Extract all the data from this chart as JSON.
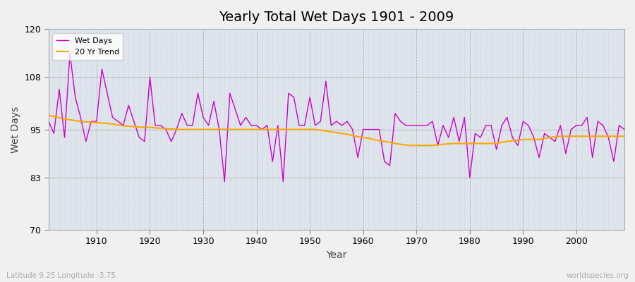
{
  "title": "Yearly Total Wet Days 1901 - 2009",
  "xlabel": "Year",
  "ylabel": "Wet Days",
  "subtitle_left": "Latitude 9.25 Longitude -3.75",
  "subtitle_right": "worldspecies.org",
  "bg_color": "#f0f0f0",
  "plot_bg_color": "#dde4ec",
  "wet_days_color": "#cc00cc",
  "trend_color": "#ffa500",
  "ylim": [
    70,
    120
  ],
  "yticks": [
    70,
    83,
    95,
    108,
    120
  ],
  "xlim": [
    1901,
    2009
  ],
  "xticks": [
    1910,
    1920,
    1930,
    1940,
    1950,
    1960,
    1970,
    1980,
    1990,
    2000
  ],
  "years": [
    1901,
    1902,
    1903,
    1904,
    1905,
    1906,
    1907,
    1908,
    1909,
    1910,
    1911,
    1912,
    1913,
    1914,
    1915,
    1916,
    1917,
    1918,
    1919,
    1920,
    1921,
    1922,
    1923,
    1924,
    1925,
    1926,
    1927,
    1928,
    1929,
    1930,
    1931,
    1932,
    1933,
    1934,
    1935,
    1936,
    1937,
    1938,
    1939,
    1940,
    1941,
    1942,
    1943,
    1944,
    1945,
    1946,
    1947,
    1948,
    1949,
    1950,
    1951,
    1952,
    1953,
    1954,
    1955,
    1956,
    1957,
    1958,
    1959,
    1960,
    1961,
    1962,
    1963,
    1964,
    1965,
    1966,
    1967,
    1968,
    1969,
    1970,
    1971,
    1972,
    1973,
    1974,
    1975,
    1976,
    1977,
    1978,
    1979,
    1980,
    1981,
    1982,
    1983,
    1984,
    1985,
    1986,
    1987,
    1988,
    1989,
    1990,
    1991,
    1992,
    1993,
    1994,
    1995,
    1996,
    1997,
    1998,
    1999,
    2000,
    2001,
    2002,
    2003,
    2004,
    2005,
    2006,
    2007,
    2008,
    2009
  ],
  "wet_days": [
    97,
    94,
    105,
    93,
    114,
    103,
    98,
    92,
    97,
    97,
    110,
    104,
    98,
    97,
    96,
    101,
    97,
    93,
    92,
    108,
    96,
    96,
    95,
    92,
    95,
    99,
    96,
    96,
    104,
    98,
    96,
    102,
    95,
    82,
    104,
    100,
    96,
    98,
    96,
    96,
    95,
    96,
    87,
    96,
    82,
    104,
    103,
    96,
    96,
    103,
    96,
    97,
    107,
    96,
    97,
    96,
    97,
    95,
    88,
    95,
    95,
    95,
    95,
    87,
    86,
    99,
    97,
    96,
    96,
    96,
    96,
    96,
    97,
    91,
    96,
    93,
    98,
    92,
    98,
    83,
    94,
    93,
    96,
    96,
    90,
    96,
    98,
    93,
    91,
    97,
    96,
    93,
    88,
    94,
    93,
    92,
    96,
    89,
    95,
    96,
    96,
    98,
    88,
    97,
    96,
    93,
    87,
    96,
    95
  ],
  "trend": [
    98.5,
    98.2,
    97.9,
    97.6,
    97.4,
    97.2,
    97.0,
    96.9,
    96.8,
    96.7,
    96.6,
    96.5,
    96.3,
    96.1,
    95.9,
    95.8,
    95.7,
    95.6,
    95.5,
    95.5,
    95.4,
    95.3,
    95.2,
    95.1,
    95.0,
    95.0,
    95.0,
    95.0,
    95.0,
    95.0,
    95.0,
    95.0,
    95.0,
    95.0,
    95.0,
    95.0,
    95.0,
    95.0,
    95.0,
    95.0,
    95.0,
    95.0,
    95.0,
    95.0,
    95.0,
    95.0,
    95.0,
    95.0,
    95.0,
    95.0,
    95.0,
    94.8,
    94.6,
    94.4,
    94.2,
    94.0,
    93.8,
    93.5,
    93.2,
    93.0,
    92.8,
    92.5,
    92.2,
    92.0,
    91.8,
    91.5,
    91.3,
    91.1,
    91.0,
    91.0,
    91.0,
    91.0,
    91.0,
    91.2,
    91.3,
    91.4,
    91.5,
    91.5,
    91.5,
    91.5,
    91.5,
    91.5,
    91.5,
    91.5,
    91.5,
    91.8,
    92.0,
    92.2,
    92.3,
    92.5,
    92.5,
    92.5,
    92.5,
    92.8,
    93.0,
    93.2,
    93.3,
    93.3,
    93.3,
    93.3,
    93.3,
    93.3,
    93.3,
    93.3,
    93.3,
    93.3,
    93.3,
    93.3,
    93.3
  ]
}
